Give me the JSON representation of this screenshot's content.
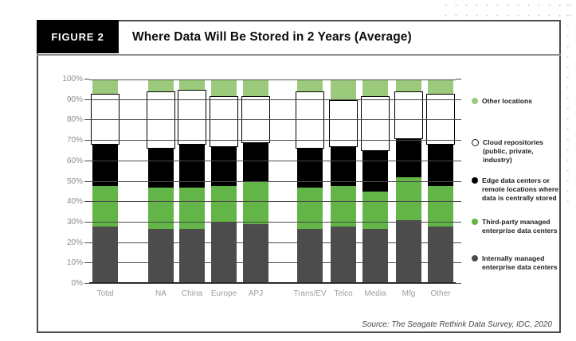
{
  "figure": {
    "label": "FIGURE 2",
    "title": "Where Data Will Be Stored in 2 Years (Average)"
  },
  "source": "Source: The Seagate Rethink Data Survey, IDC, 2020",
  "colors": {
    "internally_managed": "#4c4c4c",
    "third_party": "#62b546",
    "edge": "#000000",
    "cloud": "#ffffff",
    "other_locations": "#9cca7d"
  },
  "chart_data": {
    "type": "bar",
    "stacked": true,
    "unit": "percent",
    "title": "Where Data Will Be Stored in 2 Years (Average)",
    "categories": [
      "Total",
      "NA",
      "China",
      "Europe",
      "APJ",
      "Trans/EV",
      "Telco",
      "Media",
      "Mfg",
      "Other"
    ],
    "category_groups": [
      [
        "Total"
      ],
      [
        "NA",
        "China",
        "Europe",
        "APJ"
      ],
      [
        "Trans/EV",
        "Telco",
        "Media",
        "Mfg",
        "Other"
      ]
    ],
    "ylim": [
      0,
      100
    ],
    "y_tick_labels": [
      "0%",
      "10%",
      "20%",
      "30%",
      "40%",
      "50%",
      "60%",
      "70%",
      "80%",
      "90%",
      "100%"
    ],
    "grid": true,
    "legend_position": "right",
    "series": [
      {
        "name": "Internally managed enterprise data centers",
        "color": "#4c4c4c",
        "values": [
          28,
          27,
          27,
          30,
          29,
          27,
          28,
          27,
          31,
          28
        ]
      },
      {
        "name": "Third-party managed enterprise data centers",
        "color": "#62b546",
        "values": [
          20,
          20,
          20,
          18,
          21,
          20,
          20,
          18,
          21,
          20
        ]
      },
      {
        "name": "Edge data centers or remote locations where data is centrally stored",
        "color": "#000000",
        "values": [
          20,
          19,
          21,
          19,
          19,
          19,
          19,
          20,
          19,
          20
        ]
      },
      {
        "name": "Cloud repositories (public, private, industry)",
        "color": "#ffffff",
        "values": [
          25,
          28,
          27,
          25,
          23,
          28,
          23,
          27,
          23,
          25
        ]
      },
      {
        "name": "Other locations",
        "color": "#9cca7d",
        "values": [
          7,
          6,
          5,
          8,
          8,
          6,
          10,
          8,
          6,
          7
        ]
      }
    ],
    "legend": [
      {
        "swatch": "lightgreen",
        "label": "Other locations"
      },
      {
        "swatch": "hollow",
        "label": "Cloud repositories (public, private, industry)"
      },
      {
        "swatch": "black",
        "label": "Edge data centers or remote locations where data is centrally stored"
      },
      {
        "swatch": "green",
        "label": "Third-party managed enterprise data centers"
      },
      {
        "swatch": "gray",
        "label": "Internally managed enterprise data centers"
      }
    ]
  }
}
